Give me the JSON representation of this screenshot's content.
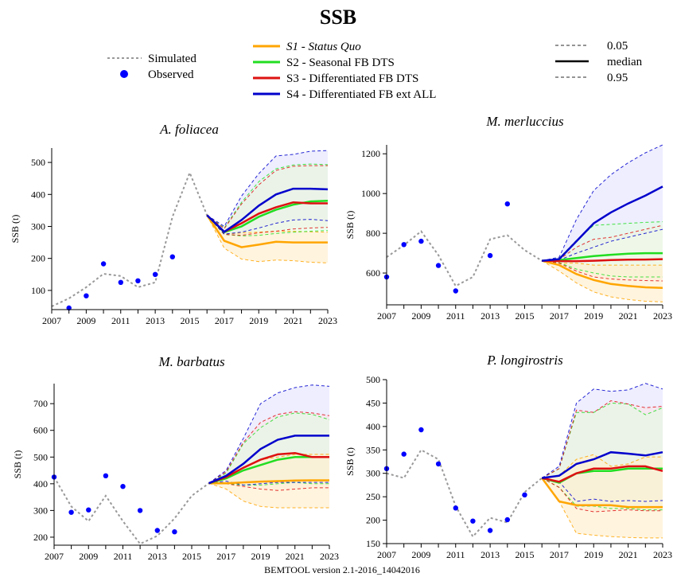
{
  "page": {
    "title": "SSB",
    "footer": "BEMTOOL version 2.1-2016_14042016"
  },
  "legend": {
    "simulated": "Simulated",
    "observed": "Observed",
    "scenarios": [
      {
        "label": "S1 - Status Quo",
        "color": "#ffa500",
        "italic": true
      },
      {
        "label": "S2 - Seasonal FB DTS",
        "color": "#22dd22",
        "italic": false
      },
      {
        "label": "S3 - Differentiated FB DTS",
        "color": "#dd1111",
        "italic": false
      },
      {
        "label": "S4 - Differentiated FB ext ALL",
        "color": "#0000cc",
        "italic": false
      }
    ],
    "quantiles": [
      {
        "label": "0.05",
        "style": "dashed"
      },
      {
        "label": "median",
        "style": "solid"
      },
      {
        "label": "0.95",
        "style": "dashed"
      }
    ]
  },
  "colors": {
    "simulated": "#999999",
    "observed": "#0000ff",
    "S1": "#ffa500",
    "S2": "#22dd22",
    "S3": "#dd1111",
    "S4": "#0000cc"
  },
  "chart_data": [
    {
      "type": "line",
      "title": "A. foliacea",
      "ylabel": "SSB (t)",
      "xlim": [
        2007,
        2023
      ],
      "ylim": [
        40,
        545
      ],
      "yticks": [
        100,
        200,
        300,
        400,
        500
      ],
      "xticks": [
        2007,
        2009,
        2011,
        2013,
        2015,
        2017,
        2019,
        2021,
        2023
      ],
      "simulated": {
        "x": [
          2007,
          2008,
          2009,
          2010,
          2011,
          2012,
          2013,
          2014,
          2015,
          2016
        ],
        "y": [
          50,
          75,
          110,
          152,
          145,
          110,
          125,
          330,
          468,
          335
        ]
      },
      "observed": {
        "x": [
          2008,
          2009,
          2010,
          2011,
          2012,
          2013,
          2014
        ],
        "y": [
          45,
          83,
          183,
          125,
          130,
          150,
          205
        ]
      },
      "proj_x": [
        2016,
        2017,
        2018,
        2019,
        2020,
        2021,
        2022,
        2023
      ],
      "series": [
        {
          "name": "S1",
          "median": [
            335,
            255,
            235,
            243,
            252,
            250,
            250,
            250
          ],
          "q05": [
            335,
            232,
            198,
            190,
            195,
            193,
            188,
            186
          ],
          "q95": [
            335,
            275,
            280,
            282,
            285,
            285,
            283,
            282
          ]
        },
        {
          "name": "S2",
          "median": [
            335,
            282,
            300,
            330,
            352,
            368,
            378,
            380
          ],
          "q05": [
            335,
            275,
            270,
            272,
            278,
            282,
            285,
            287
          ],
          "q95": [
            335,
            295,
            375,
            440,
            480,
            492,
            495,
            493
          ]
        },
        {
          "name": "S3",
          "median": [
            335,
            283,
            310,
            340,
            360,
            375,
            372,
            372
          ],
          "q05": [
            335,
            275,
            272,
            280,
            285,
            292,
            295,
            297
          ],
          "q95": [
            335,
            293,
            370,
            430,
            475,
            488,
            490,
            490
          ]
        },
        {
          "name": "S4",
          "median": [
            335,
            283,
            320,
            365,
            400,
            418,
            418,
            416
          ],
          "q05": [
            335,
            276,
            282,
            295,
            310,
            320,
            322,
            318
          ],
          "q95": [
            335,
            300,
            395,
            465,
            520,
            525,
            535,
            537
          ]
        }
      ]
    },
    {
      "type": "line",
      "title": "M. merluccius",
      "ylabel": "SSB (t)",
      "xlim": [
        2007,
        2023
      ],
      "ylim": [
        440,
        1245
      ],
      "yticks": [
        600,
        800,
        1000,
        1200
      ],
      "xticks": [
        2007,
        2009,
        2011,
        2013,
        2015,
        2017,
        2019,
        2021,
        2023
      ],
      "simulated": {
        "x": [
          2007,
          2008,
          2009,
          2010,
          2011,
          2012,
          2013,
          2014,
          2015,
          2016
        ],
        "y": [
          680,
          740,
          810,
          690,
          535,
          580,
          770,
          790,
          715,
          662
        ]
      },
      "observed": {
        "x": [
          2007,
          2008,
          2009,
          2010,
          2011,
          2013,
          2014
        ],
        "y": [
          580,
          743,
          760,
          638,
          510,
          688,
          948
        ]
      },
      "proj_x": [
        2016,
        2017,
        2018,
        2019,
        2020,
        2021,
        2022,
        2023
      ],
      "series": [
        {
          "name": "S1",
          "median": [
            662,
            640,
            595,
            565,
            545,
            535,
            528,
            525
          ],
          "q05": [
            662,
            610,
            550,
            505,
            480,
            467,
            458,
            455
          ],
          "q95": [
            662,
            650,
            650,
            640,
            640,
            640,
            640,
            640
          ]
        },
        {
          "name": "S2",
          "median": [
            662,
            665,
            675,
            685,
            692,
            697,
            700,
            700
          ],
          "q05": [
            662,
            652,
            620,
            600,
            585,
            580,
            580,
            580
          ],
          "q95": [
            662,
            675,
            765,
            840,
            845,
            850,
            855,
            858
          ]
        },
        {
          "name": "S3",
          "median": [
            662,
            660,
            660,
            662,
            665,
            667,
            668,
            670
          ],
          "q05": [
            662,
            650,
            610,
            580,
            570,
            565,
            562,
            560
          ],
          "q95": [
            662,
            668,
            730,
            770,
            780,
            800,
            820,
            840
          ]
        },
        {
          "name": "S4",
          "median": [
            662,
            670,
            760,
            850,
            905,
            950,
            990,
            1035
          ],
          "q05": [
            662,
            665,
            700,
            730,
            760,
            780,
            800,
            820
          ],
          "q95": [
            662,
            680,
            870,
            1015,
            1095,
            1155,
            1205,
            1245
          ]
        }
      ]
    },
    {
      "type": "line",
      "title": "M. barbatus",
      "ylabel": "SSB (t)",
      "xlim": [
        2007,
        2023
      ],
      "ylim": [
        170,
        775
      ],
      "yticks": [
        200,
        300,
        400,
        500,
        600,
        700
      ],
      "xticks": [
        2007,
        2009,
        2011,
        2013,
        2015,
        2017,
        2019,
        2021,
        2023
      ],
      "simulated": {
        "x": [
          2007,
          2008,
          2009,
          2010,
          2011,
          2012,
          2013,
          2014,
          2015,
          2016
        ],
        "y": [
          425,
          315,
          260,
          355,
          260,
          175,
          205,
          270,
          355,
          402
        ]
      },
      "observed": {
        "x": [
          2007,
          2008,
          2009,
          2010,
          2011,
          2012,
          2013,
          2014
        ],
        "y": [
          425,
          293,
          302,
          430,
          390,
          300,
          225,
          220
        ]
      },
      "proj_x": [
        2016,
        2017,
        2018,
        2019,
        2020,
        2021,
        2022,
        2023
      ],
      "series": [
        {
          "name": "S1",
          "median": [
            402,
            402,
            405,
            408,
            410,
            412,
            413,
            413
          ],
          "q05": [
            402,
            380,
            335,
            315,
            310,
            310,
            310,
            310
          ],
          "q95": [
            402,
            425,
            460,
            490,
            500,
            510,
            510,
            510
          ]
        },
        {
          "name": "S2",
          "median": [
            402,
            420,
            450,
            470,
            490,
            500,
            500,
            500
          ],
          "q05": [
            402,
            400,
            395,
            395,
            400,
            405,
            400,
            400
          ],
          "q95": [
            402,
            440,
            550,
            610,
            650,
            665,
            660,
            640
          ]
        },
        {
          "name": "S3",
          "median": [
            402,
            425,
            460,
            490,
            510,
            515,
            500,
            500
          ],
          "q05": [
            402,
            400,
            390,
            380,
            375,
            380,
            385,
            385
          ],
          "q95": [
            402,
            445,
            555,
            630,
            660,
            670,
            665,
            655
          ]
        },
        {
          "name": "S4",
          "median": [
            402,
            430,
            475,
            530,
            565,
            580,
            580,
            580
          ],
          "q05": [
            402,
            410,
            395,
            400,
            405,
            405,
            405,
            405
          ],
          "q95": [
            402,
            450,
            570,
            700,
            740,
            760,
            770,
            765
          ]
        }
      ]
    },
    {
      "type": "line",
      "title": "P. longirostris",
      "ylabel": "SSB (t)",
      "xlim": [
        2007,
        2023
      ],
      "ylim": [
        150,
        500
      ],
      "yticks": [
        150,
        200,
        250,
        300,
        350,
        400,
        450,
        500
      ],
      "xticks": [
        2007,
        2009,
        2011,
        2013,
        2015,
        2017,
        2019,
        2021,
        2023
      ],
      "simulated": {
        "x": [
          2007,
          2008,
          2009,
          2010,
          2011,
          2012,
          2013,
          2014,
          2015,
          2016
        ],
        "y": [
          300,
          290,
          350,
          330,
          230,
          165,
          205,
          195,
          260,
          290
        ]
      },
      "observed": {
        "x": [
          2007,
          2008,
          2009,
          2010,
          2011,
          2012,
          2013,
          2014,
          2015
        ],
        "y": [
          310,
          341,
          393,
          320,
          226,
          198,
          178,
          201,
          254
        ]
      },
      "proj_x": [
        2016,
        2017,
        2018,
        2019,
        2020,
        2021,
        2022,
        2023
      ],
      "series": [
        {
          "name": "S1",
          "median": [
            290,
            240,
            232,
            232,
            232,
            228,
            228,
            228
          ],
          "q05": [
            290,
            240,
            172,
            168,
            165,
            163,
            162,
            162
          ],
          "q95": [
            290,
            295,
            330,
            340,
            315,
            320,
            335,
            335
          ]
        },
        {
          "name": "S2",
          "median": [
            290,
            280,
            300,
            305,
            305,
            310,
            310,
            310
          ],
          "q05": [
            290,
            270,
            230,
            230,
            225,
            225,
            222,
            222
          ],
          "q95": [
            290,
            310,
            430,
            430,
            450,
            448,
            425,
            440
          ]
        },
        {
          "name": "S3",
          "median": [
            290,
            282,
            300,
            310,
            310,
            315,
            315,
            305
          ],
          "q05": [
            290,
            270,
            225,
            218,
            220,
            222,
            220,
            220
          ],
          "q95": [
            290,
            310,
            435,
            430,
            455,
            448,
            440,
            443
          ]
        },
        {
          "name": "S4",
          "median": [
            290,
            295,
            320,
            330,
            345,
            342,
            338,
            345
          ],
          "q05": [
            290,
            282,
            240,
            245,
            240,
            242,
            240,
            242
          ],
          "q95": [
            290,
            315,
            450,
            480,
            475,
            478,
            492,
            480
          ]
        }
      ]
    }
  ]
}
